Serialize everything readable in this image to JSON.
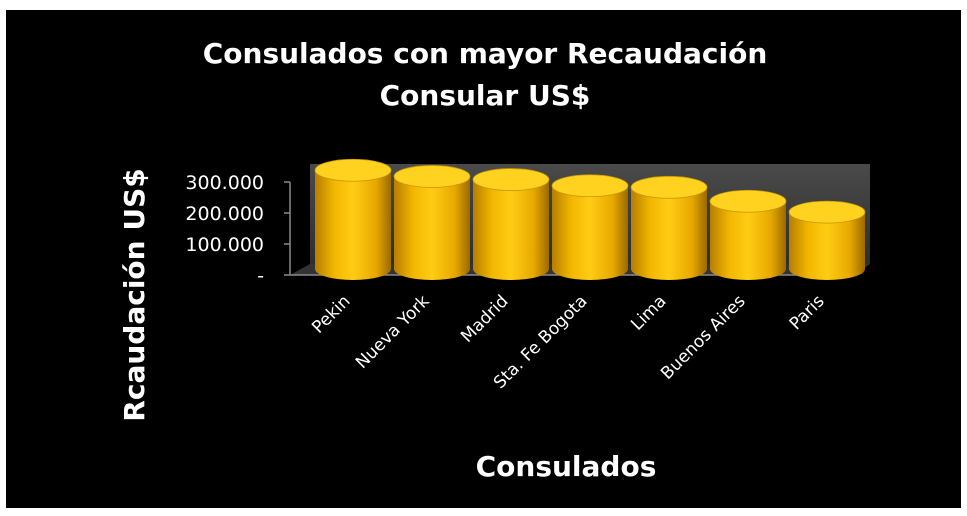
{
  "chart_data": {
    "type": "bar",
    "style": "3d-cylinder",
    "title_lines": [
      "Consulados con mayor  Recaudación",
      "Consular US$"
    ],
    "xlabel": "Consulados",
    "ylabel": "Rcaudación US$",
    "categories": [
      "Pekin",
      "Nueva York",
      "Madrid",
      "Sta. Fe  Bogota",
      "Lima",
      "Buenos Aires",
      "Paris"
    ],
    "values": [
      325000,
      305000,
      295000,
      275000,
      270000,
      225000,
      190000
    ],
    "ylim": [
      0,
      300000
    ],
    "yticks": [
      0,
      100000,
      200000,
      300000
    ],
    "ytick_labels": [
      "-",
      "100.000",
      "200.000",
      "300.000"
    ],
    "grid": false,
    "legend": "none",
    "colors": {
      "background": "#000000",
      "bar_fill": "#F2B600",
      "bar_top": "#FFD21F",
      "plot_wall": "#3C3C3C",
      "text": "#FFFFFF"
    }
  }
}
